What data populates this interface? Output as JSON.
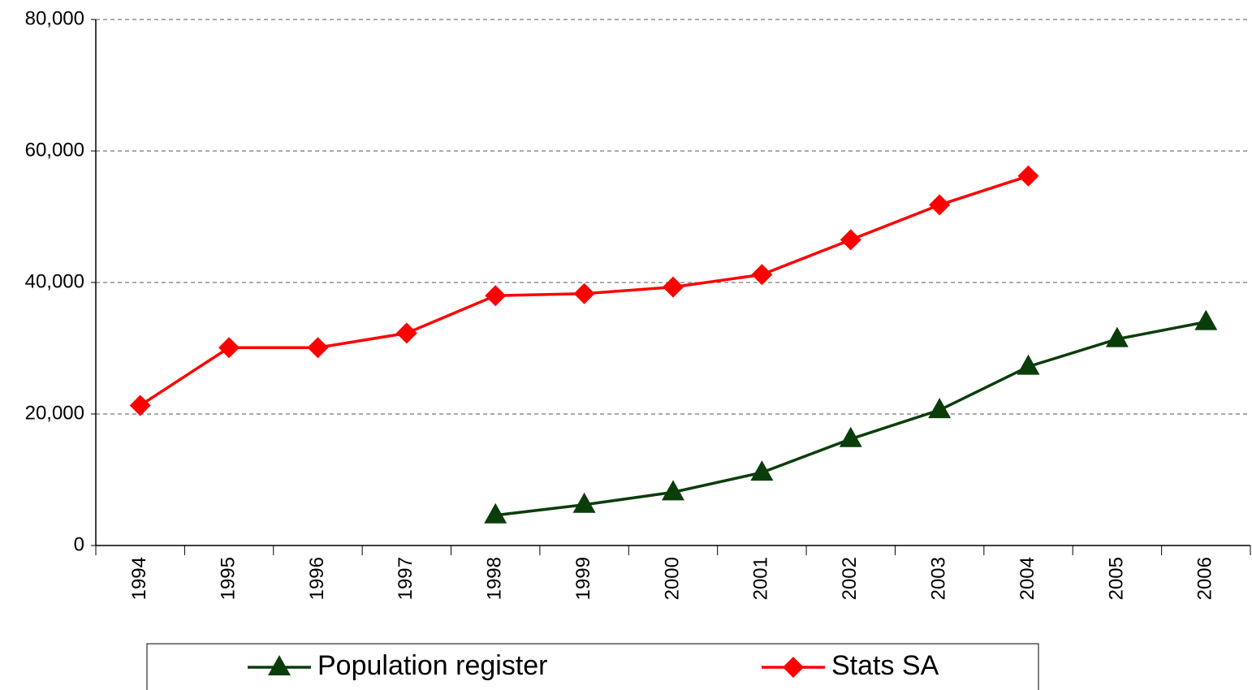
{
  "chart_data": {
    "type": "line",
    "categories": [
      "1994",
      "1995",
      "1996",
      "1997",
      "1998",
      "1999",
      "2000",
      "2001",
      "2002",
      "2003",
      "2004",
      "2005",
      "2006"
    ],
    "series": [
      {
        "name": "Population register",
        "color": "#0b3d0b",
        "marker": "triangle",
        "values": [
          null,
          null,
          null,
          null,
          4600,
          6200,
          8100,
          11100,
          16200,
          20600,
          27200,
          31400,
          34000
        ]
      },
      {
        "name": "Stats SA",
        "color": "#ff0000",
        "marker": "diamond",
        "values": [
          21300,
          30100,
          30100,
          32300,
          38000,
          38300,
          39300,
          41200,
          46500,
          51800,
          56200,
          null,
          null
        ]
      }
    ],
    "ylim": [
      0,
      80000
    ],
    "yticks": [
      0,
      {
        "value": 20000,
        "label": "20,000"
      },
      {
        "value": 40000,
        "label": "40,000"
      },
      {
        "value": 60000,
        "label": "60,000"
      },
      {
        "value": 80000,
        "label": "80,000"
      }
    ],
    "grid": true,
    "legend": "bottom"
  }
}
